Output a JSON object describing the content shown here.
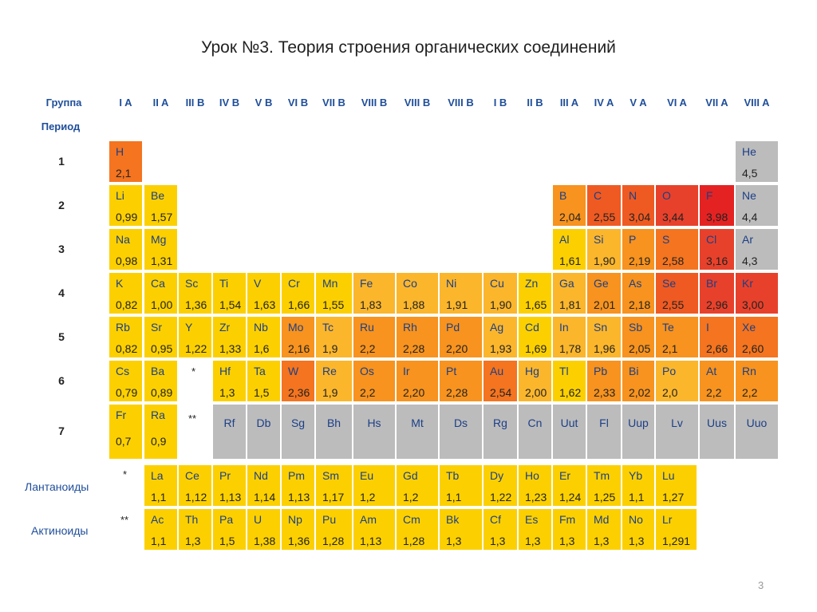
{
  "title": "Урок №3. Теория строения органических соединений",
  "page_number": "3",
  "header": {
    "group_label": "Группа",
    "period_label": "Период"
  },
  "groups": [
    "I A",
    "II A",
    "III B",
    "IV B",
    "V B",
    "VI B",
    "VII B",
    "VIII B",
    "VIII B",
    "VIII B",
    "I B",
    "II B",
    "III A",
    "IV A",
    "V A",
    "VI A",
    "VII A",
    "VIII A"
  ],
  "periods": [
    "1",
    "2",
    "3",
    "4",
    "5",
    "6",
    "7"
  ],
  "series_labels": {
    "lanthanides": "Лантаноиды",
    "actinides": "Актиноиды"
  },
  "markers": {
    "lanthanide": "*",
    "actinide": "**"
  },
  "colors": {
    "yellow": "#fcd000",
    "orange_light": "#fbb62c",
    "orange": "#f7931e",
    "orange_dark": "#f4741f",
    "red_orange": "#ef5a22",
    "red": "#e8412b",
    "red_deep": "#e52222",
    "gray": "#bcbcbc"
  },
  "elements": [
    {
      "s": "H",
      "en": "2,1",
      "c": "orange_dark"
    },
    {
      "s": "He",
      "en": "4,5",
      "c": "gray"
    },
    {
      "s": "Li",
      "en": "0,99",
      "c": "yellow"
    },
    {
      "s": "Be",
      "en": "1,57",
      "c": "yellow"
    },
    {
      "s": "B",
      "en": "2,04",
      "c": "orange"
    },
    {
      "s": "C",
      "en": "2,55",
      "c": "red_orange"
    },
    {
      "s": "N",
      "en": "3,04",
      "c": "red_orange"
    },
    {
      "s": "O",
      "en": "3,44",
      "c": "red"
    },
    {
      "s": "F",
      "en": "3,98",
      "c": "red_deep"
    },
    {
      "s": "Ne",
      "en": "4,4",
      "c": "gray"
    },
    {
      "s": "Na",
      "en": "0,98",
      "c": "yellow"
    },
    {
      "s": "Mg",
      "en": "1,31",
      "c": "yellow"
    },
    {
      "s": "Al",
      "en": "1,61",
      "c": "yellow"
    },
    {
      "s": "Si",
      "en": "1,90",
      "c": "orange_light"
    },
    {
      "s": "P",
      "en": "2,19",
      "c": "orange"
    },
    {
      "s": "S",
      "en": "2,58",
      "c": "orange_dark"
    },
    {
      "s": "Cl",
      "en": "3,16",
      "c": "red"
    },
    {
      "s": "Ar",
      "en": "4,3",
      "c": "gray"
    },
    {
      "s": "K",
      "en": "0,82",
      "c": "yellow"
    },
    {
      "s": "Ca",
      "en": "1,00",
      "c": "yellow"
    },
    {
      "s": "Sc",
      "en": "1,36",
      "c": "yellow"
    },
    {
      "s": "Ti",
      "en": "1,54",
      "c": "yellow"
    },
    {
      "s": "V",
      "en": "1,63",
      "c": "yellow"
    },
    {
      "s": "Cr",
      "en": "1,66",
      "c": "yellow"
    },
    {
      "s": "Mn",
      "en": "1,55",
      "c": "yellow"
    },
    {
      "s": "Fe",
      "en": "1,83",
      "c": "orange_light"
    },
    {
      "s": "Co",
      "en": "1,88",
      "c": "orange_light"
    },
    {
      "s": "Ni",
      "en": "1,91",
      "c": "orange_light"
    },
    {
      "s": "Cu",
      "en": "1,90",
      "c": "orange_light"
    },
    {
      "s": "Zn",
      "en": "1,65",
      "c": "yellow"
    },
    {
      "s": "Ga",
      "en": "1,81",
      "c": "orange_light"
    },
    {
      "s": "Ge",
      "en": "2,01",
      "c": "orange"
    },
    {
      "s": "As",
      "en": "2,18",
      "c": "orange"
    },
    {
      "s": "Se",
      "en": "2,55",
      "c": "red_orange"
    },
    {
      "s": "Br",
      "en": "2,96",
      "c": "red"
    },
    {
      "s": "Kr",
      "en": "3,00",
      "c": "red"
    },
    {
      "s": "Rb",
      "en": "0,82",
      "c": "yellow"
    },
    {
      "s": "Sr",
      "en": "0,95",
      "c": "yellow"
    },
    {
      "s": "Y",
      "en": "1,22",
      "c": "yellow"
    },
    {
      "s": "Zr",
      "en": "1,33",
      "c": "yellow"
    },
    {
      "s": "Nb",
      "en": "1,6",
      "c": "yellow"
    },
    {
      "s": "Mo",
      "en": "2,16",
      "c": "orange"
    },
    {
      "s": "Tc",
      "en": "1,9",
      "c": "orange_light"
    },
    {
      "s": "Ru",
      "en": "2,2",
      "c": "orange"
    },
    {
      "s": "Rh",
      "en": "2,28",
      "c": "orange"
    },
    {
      "s": "Pd",
      "en": "2,20",
      "c": "orange"
    },
    {
      "s": "Ag",
      "en": "1,93",
      "c": "orange_light"
    },
    {
      "s": "Cd",
      "en": "1,69",
      "c": "yellow"
    },
    {
      "s": "In",
      "en": "1,78",
      "c": "orange_light"
    },
    {
      "s": "Sn",
      "en": "1,96",
      "c": "orange_light"
    },
    {
      "s": "Sb",
      "en": "2,05",
      "c": "orange"
    },
    {
      "s": "Te",
      "en": "2,1",
      "c": "orange"
    },
    {
      "s": "I",
      "en": "2,66",
      "c": "orange_dark"
    },
    {
      "s": "Xe",
      "en": "2,60",
      "c": "orange_dark"
    },
    {
      "s": "Cs",
      "en": "0,79",
      "c": "yellow"
    },
    {
      "s": "Ba",
      "en": "0,89",
      "c": "yellow"
    },
    {
      "s": "Hf",
      "en": "1,3",
      "c": "yellow"
    },
    {
      "s": "Ta",
      "en": "1,5",
      "c": "yellow"
    },
    {
      "s": "W",
      "en": "2,36",
      "c": "orange_dark"
    },
    {
      "s": "Re",
      "en": "1,9",
      "c": "orange_light"
    },
    {
      "s": "Os",
      "en": "2,2",
      "c": "orange"
    },
    {
      "s": "Ir",
      "en": "2,20",
      "c": "orange"
    },
    {
      "s": "Pt",
      "en": "2,28",
      "c": "orange"
    },
    {
      "s": "Au",
      "en": "2,54",
      "c": "orange_dark"
    },
    {
      "s": "Hg",
      "en": "2,00",
      "c": "orange_light"
    },
    {
      "s": "Tl",
      "en": "1,62",
      "c": "yellow"
    },
    {
      "s": "Pb",
      "en": "2,33",
      "c": "orange"
    },
    {
      "s": "Bi",
      "en": "2,02",
      "c": "orange"
    },
    {
      "s": "Po",
      "en": "2,0",
      "c": "orange_light"
    },
    {
      "s": "At",
      "en": "2,2",
      "c": "orange"
    },
    {
      "s": "Rn",
      "en": "2,2",
      "c": "orange"
    },
    {
      "s": "Fr",
      "en": "0,7",
      "c": "yellow"
    },
    {
      "s": "Ra",
      "en": "0,9",
      "c": "yellow"
    },
    {
      "s": "Rf",
      "en": "",
      "c": "gray"
    },
    {
      "s": "Db",
      "en": "",
      "c": "gray"
    },
    {
      "s": "Sg",
      "en": "",
      "c": "gray"
    },
    {
      "s": "Bh",
      "en": "",
      "c": "gray"
    },
    {
      "s": "Hs",
      "en": "",
      "c": "gray"
    },
    {
      "s": "Mt",
      "en": "",
      "c": "gray"
    },
    {
      "s": "Ds",
      "en": "",
      "c": "gray"
    },
    {
      "s": "Rg",
      "en": "",
      "c": "gray"
    },
    {
      "s": "Cn",
      "en": "",
      "c": "gray"
    },
    {
      "s": "Uut",
      "en": "",
      "c": "gray"
    },
    {
      "s": "Fl",
      "en": "",
      "c": "gray"
    },
    {
      "s": "Uup",
      "en": "",
      "c": "gray"
    },
    {
      "s": "Lv",
      "en": "",
      "c": "gray"
    },
    {
      "s": "Uus",
      "en": "",
      "c": "gray"
    },
    {
      "s": "Uuo",
      "en": "",
      "c": "gray"
    }
  ],
  "lanthanides": [
    {
      "s": "La",
      "en": "1,1"
    },
    {
      "s": "Ce",
      "en": "1,12"
    },
    {
      "s": "Pr",
      "en": "1,13"
    },
    {
      "s": "Nd",
      "en": "1,14"
    },
    {
      "s": "Pm",
      "en": "1,13"
    },
    {
      "s": "Sm",
      "en": "1,17"
    },
    {
      "s": "Eu",
      "en": "1,2"
    },
    {
      "s": "Gd",
      "en": "1,2"
    },
    {
      "s": "Tb",
      "en": "1,1"
    },
    {
      "s": "Dy",
      "en": "1,22"
    },
    {
      "s": "Ho",
      "en": "1,23"
    },
    {
      "s": "Er",
      "en": "1,24"
    },
    {
      "s": "Tm",
      "en": "1,25"
    },
    {
      "s": "Yb",
      "en": "1,1"
    },
    {
      "s": "Lu",
      "en": "1,27"
    }
  ],
  "actinides": [
    {
      "s": "Ac",
      "en": "1,1"
    },
    {
      "s": "Th",
      "en": "1,3"
    },
    {
      "s": "Pa",
      "en": "1,5"
    },
    {
      "s": "U",
      "en": "1,38"
    },
    {
      "s": "Np",
      "en": "1,36"
    },
    {
      "s": "Pu",
      "en": "1,28"
    },
    {
      "s": "Am",
      "en": "1,13"
    },
    {
      "s": "Cm",
      "en": "1,28"
    },
    {
      "s": "Bk",
      "en": "1,3"
    },
    {
      "s": "Cf",
      "en": "1,3"
    },
    {
      "s": "Es",
      "en": "1,3"
    },
    {
      "s": "Fm",
      "en": "1,3"
    },
    {
      "s": "Md",
      "en": "1,3"
    },
    {
      "s": "No",
      "en": "1,3"
    },
    {
      "s": "Lr",
      "en": "1,291"
    }
  ]
}
